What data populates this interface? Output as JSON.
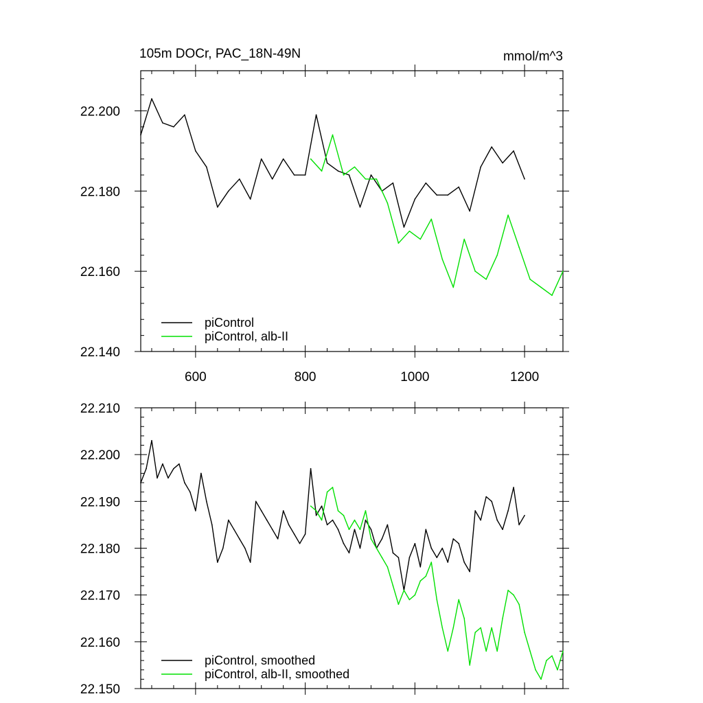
{
  "figure": {
    "title": "105m DOCr, PAC_18N-49N",
    "units": "mmol/m^3"
  },
  "colors": {
    "control": "#000000",
    "albII": "#00e000"
  },
  "chart_data": [
    {
      "type": "line",
      "xlim": [
        500,
        1270
      ],
      "ylim": [
        22.14,
        22.21
      ],
      "grid": false,
      "x_ticks": [
        600,
        800,
        1000,
        1200
      ],
      "x_tick_labels": [
        "600",
        "800",
        "1000",
        "1200"
      ],
      "y_ticks": [
        22.14,
        22.16,
        22.18,
        22.2
      ],
      "y_tick_labels": [
        "22.140",
        "22.160",
        "22.180",
        "22.200"
      ],
      "legend_position": "bottom-left",
      "series": [
        {
          "name": "piControl",
          "color": "#000000",
          "x": [
            500,
            520,
            540,
            560,
            580,
            600,
            620,
            640,
            660,
            680,
            700,
            720,
            740,
            760,
            780,
            800,
            820,
            840,
            860,
            880,
            900,
            920,
            940,
            960,
            980,
            1000,
            1020,
            1040,
            1060,
            1080,
            1100,
            1120,
            1140,
            1160,
            1180,
            1200
          ],
          "y": [
            22.194,
            22.203,
            22.197,
            22.196,
            22.199,
            22.19,
            22.186,
            22.176,
            22.18,
            22.183,
            22.178,
            22.188,
            22.183,
            22.188,
            22.184,
            22.184,
            22.199,
            22.187,
            22.185,
            22.184,
            22.176,
            22.184,
            22.18,
            22.182,
            22.171,
            22.178,
            22.182,
            22.179,
            22.179,
            22.181,
            22.175,
            22.186,
            22.191,
            22.187,
            22.19,
            22.183
          ]
        },
        {
          "name": "piControl, alb-II",
          "color": "#00e000",
          "x": [
            810,
            830,
            850,
            870,
            890,
            910,
            930,
            950,
            970,
            990,
            1010,
            1030,
            1050,
            1070,
            1090,
            1110,
            1130,
            1150,
            1170,
            1190,
            1210,
            1230,
            1250,
            1270
          ],
          "y": [
            22.188,
            22.185,
            22.194,
            22.184,
            22.186,
            22.183,
            22.183,
            22.177,
            22.167,
            22.17,
            22.168,
            22.173,
            22.163,
            22.156,
            22.168,
            22.16,
            22.158,
            22.164,
            22.174,
            22.166,
            22.158,
            22.156,
            22.154,
            22.16
          ]
        }
      ]
    },
    {
      "type": "line",
      "xlim": [
        500,
        1270
      ],
      "ylim": [
        22.15,
        22.21
      ],
      "grid": false,
      "x_ticks": [
        600,
        800,
        1000,
        1200
      ],
      "y_ticks": [
        22.15,
        22.16,
        22.17,
        22.18,
        22.19,
        22.2,
        22.21
      ],
      "y_tick_labels": [
        "22.150",
        "22.160",
        "22.170",
        "22.180",
        "22.190",
        "22.200",
        "22.210"
      ],
      "legend_position": "bottom-left",
      "series": [
        {
          "name": "piControl, smoothed",
          "color": "#000000",
          "x": [
            500,
            510,
            520,
            530,
            540,
            550,
            560,
            570,
            580,
            590,
            600,
            610,
            620,
            630,
            640,
            650,
            660,
            670,
            680,
            690,
            700,
            710,
            720,
            730,
            740,
            750,
            760,
            770,
            780,
            790,
            800,
            810,
            820,
            830,
            840,
            850,
            860,
            870,
            880,
            890,
            900,
            910,
            920,
            930,
            940,
            950,
            960,
            970,
            980,
            990,
            1000,
            1010,
            1020,
            1030,
            1040,
            1050,
            1060,
            1070,
            1080,
            1090,
            1100,
            1110,
            1120,
            1130,
            1140,
            1150,
            1160,
            1170,
            1180,
            1190,
            1200
          ],
          "y": [
            22.194,
            22.197,
            22.203,
            22.195,
            22.198,
            22.195,
            22.197,
            22.198,
            22.194,
            22.192,
            22.188,
            22.196,
            22.19,
            22.185,
            22.177,
            22.18,
            22.186,
            22.184,
            22.182,
            22.18,
            22.177,
            22.19,
            22.188,
            22.186,
            22.184,
            22.182,
            22.188,
            22.185,
            22.183,
            22.181,
            22.183,
            22.197,
            22.187,
            22.189,
            22.185,
            22.186,
            22.184,
            22.181,
            22.179,
            22.184,
            22.18,
            22.186,
            22.184,
            22.18,
            22.182,
            22.185,
            22.179,
            22.178,
            22.171,
            22.178,
            22.181,
            22.176,
            22.184,
            22.18,
            22.178,
            22.18,
            22.177,
            22.182,
            22.181,
            22.177,
            22.175,
            22.188,
            22.186,
            22.191,
            22.19,
            22.186,
            22.184,
            22.188,
            22.193,
            22.185,
            22.187
          ]
        },
        {
          "name": "piControl, alb-II, smoothed",
          "color": "#00e000",
          "x": [
            810,
            820,
            830,
            840,
            850,
            860,
            870,
            880,
            890,
            900,
            910,
            920,
            930,
            940,
            950,
            960,
            970,
            980,
            990,
            1000,
            1010,
            1020,
            1030,
            1040,
            1050,
            1060,
            1070,
            1080,
            1090,
            1100,
            1110,
            1120,
            1130,
            1140,
            1150,
            1160,
            1170,
            1180,
            1190,
            1200,
            1210,
            1220,
            1230,
            1240,
            1250,
            1260,
            1270
          ],
          "y": [
            22.189,
            22.188,
            22.186,
            22.192,
            22.193,
            22.188,
            22.187,
            22.184,
            22.186,
            22.184,
            22.188,
            22.182,
            22.18,
            22.178,
            22.176,
            22.172,
            22.168,
            22.171,
            22.169,
            22.17,
            22.173,
            22.174,
            22.177,
            22.169,
            22.163,
            22.158,
            22.163,
            22.169,
            22.165,
            22.155,
            22.162,
            22.163,
            22.158,
            22.163,
            22.158,
            22.165,
            22.171,
            22.17,
            22.168,
            22.162,
            22.158,
            22.154,
            22.152,
            22.156,
            22.157,
            22.154,
            22.158
          ]
        }
      ]
    }
  ]
}
